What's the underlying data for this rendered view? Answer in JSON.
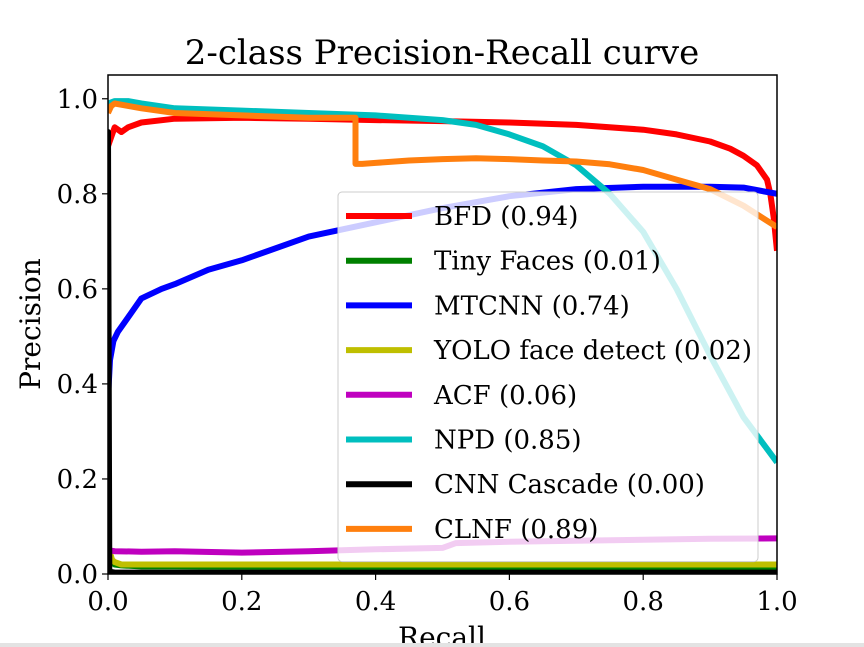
{
  "chart_data": {
    "type": "line",
    "title": "2-class Precision-Recall curve",
    "xlabel": "Recall",
    "ylabel": "Precision",
    "xlim": [
      0.0,
      1.0
    ],
    "ylim": [
      0.0,
      1.05
    ],
    "xticks": [
      "0.0",
      "0.2",
      "0.4",
      "0.6",
      "0.8",
      "1.0"
    ],
    "yticks": [
      "0.0",
      "0.2",
      "0.4",
      "0.6",
      "0.8",
      "1.0"
    ],
    "grid": false,
    "legend_position": "lower-right",
    "series": [
      {
        "name": "BFD (0.94)",
        "color": "#ff0000",
        "x": [
          0.0,
          0.005,
          0.01,
          0.02,
          0.03,
          0.05,
          0.1,
          0.2,
          0.3,
          0.4,
          0.5,
          0.6,
          0.7,
          0.8,
          0.85,
          0.9,
          0.93,
          0.95,
          0.97,
          0.985,
          0.99,
          0.995,
          1.0
        ],
        "y": [
          0.9,
          0.92,
          0.94,
          0.93,
          0.94,
          0.95,
          0.958,
          0.96,
          0.958,
          0.955,
          0.953,
          0.95,
          0.945,
          0.935,
          0.925,
          0.91,
          0.895,
          0.88,
          0.86,
          0.83,
          0.8,
          0.75,
          0.68
        ]
      },
      {
        "name": "Tiny Faces (0.01)",
        "color": "#008000",
        "x": [
          0.0,
          0.003,
          0.01,
          0.02,
          0.05,
          0.1,
          0.3,
          0.5,
          0.7,
          1.0
        ],
        "y": [
          0.05,
          0.03,
          0.02,
          0.018,
          0.016,
          0.016,
          0.015,
          0.015,
          0.014,
          0.014
        ]
      },
      {
        "name": "MTCNN (0.74)",
        "color": "#0000ff",
        "x": [
          0.0,
          0.003,
          0.008,
          0.015,
          0.03,
          0.05,
          0.08,
          0.1,
          0.15,
          0.2,
          0.3,
          0.4,
          0.5,
          0.6,
          0.7,
          0.8,
          0.9,
          0.95,
          1.0
        ],
        "y": [
          0.37,
          0.45,
          0.49,
          0.51,
          0.54,
          0.58,
          0.6,
          0.61,
          0.64,
          0.66,
          0.71,
          0.74,
          0.77,
          0.795,
          0.81,
          0.815,
          0.815,
          0.813,
          0.8
        ]
      },
      {
        "name": "YOLO face detect (0.02)",
        "color": "#bfbf00",
        "x": [
          0.0,
          0.003,
          0.006,
          0.01,
          0.02,
          0.05,
          0.1,
          0.3,
          0.5,
          0.7,
          1.0
        ],
        "y": [
          0.06,
          0.045,
          0.03,
          0.025,
          0.02,
          0.02,
          0.02,
          0.02,
          0.02,
          0.02,
          0.02
        ]
      },
      {
        "name": "ACF (0.06)",
        "color": "#bf00bf",
        "x": [
          0.0,
          0.01,
          0.05,
          0.1,
          0.2,
          0.3,
          0.4,
          0.5,
          0.52,
          0.6,
          0.7,
          0.8,
          0.9,
          1.0
        ],
        "y": [
          0.05,
          0.048,
          0.047,
          0.048,
          0.045,
          0.048,
          0.052,
          0.055,
          0.065,
          0.068,
          0.07,
          0.072,
          0.074,
          0.075
        ]
      },
      {
        "name": "NPD (0.85)",
        "color": "#00bfbf",
        "x": [
          0.0,
          0.01,
          0.03,
          0.05,
          0.1,
          0.2,
          0.3,
          0.4,
          0.5,
          0.55,
          0.6,
          0.65,
          0.7,
          0.75,
          0.8,
          0.85,
          0.9,
          0.95,
          1.0
        ],
        "y": [
          0.99,
          0.995,
          0.995,
          0.99,
          0.98,
          0.975,
          0.97,
          0.965,
          0.955,
          0.945,
          0.925,
          0.9,
          0.86,
          0.8,
          0.72,
          0.6,
          0.46,
          0.33,
          0.235
        ]
      },
      {
        "name": "CNN Cascade (0.00)",
        "color": "#000000",
        "x": [
          0.0,
          0.0,
          0.002,
          0.01,
          0.1,
          0.3,
          0.5,
          0.7,
          1.0
        ],
        "y": [
          0.0,
          0.93,
          0.005,
          0.003,
          0.003,
          0.003,
          0.003,
          0.003,
          0.003
        ]
      },
      {
        "name": "CLNF (0.89)",
        "color": "#ff7f0e",
        "x": [
          0.0,
          0.005,
          0.01,
          0.03,
          0.05,
          0.1,
          0.2,
          0.3,
          0.37,
          0.37,
          0.38,
          0.4,
          0.45,
          0.5,
          0.55,
          0.6,
          0.65,
          0.7,
          0.75,
          0.8,
          0.85,
          0.9,
          0.95,
          1.0
        ],
        "y": [
          0.97,
          0.985,
          0.99,
          0.985,
          0.98,
          0.97,
          0.965,
          0.96,
          0.96,
          0.863,
          0.863,
          0.865,
          0.87,
          0.873,
          0.875,
          0.873,
          0.87,
          0.868,
          0.862,
          0.85,
          0.83,
          0.81,
          0.775,
          0.73
        ]
      }
    ]
  }
}
